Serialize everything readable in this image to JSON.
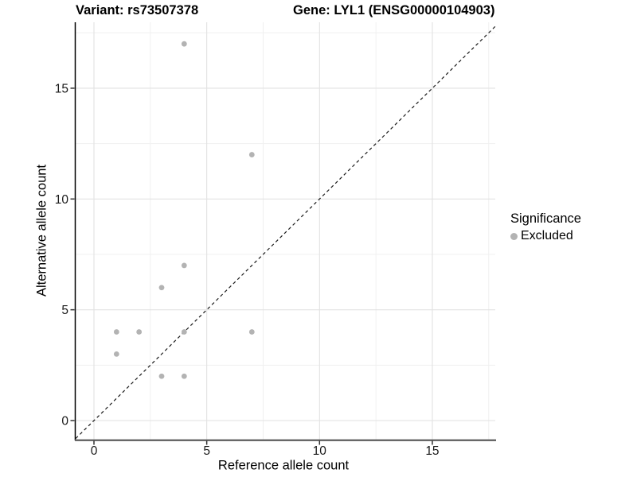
{
  "header": {
    "variant_title": "Variant: rs73507378",
    "gene_title": "Gene: LYL1 (ENSG00000104903)"
  },
  "chart_data": {
    "type": "scatter",
    "xlabel": "Reference allele count",
    "ylabel": "Alternative allele count",
    "xticks": [
      0,
      5,
      10,
      15
    ],
    "yticks": [
      0,
      5,
      10,
      15
    ],
    "minor_gridlines": [
      2.5,
      7.5,
      12.5,
      17.5
    ],
    "xlim": [
      -0.85,
      17.85
    ],
    "ylim": [
      -0.85,
      17.85
    ],
    "grid": {
      "major": true,
      "minor": true
    },
    "identity_line": {
      "style": "dashed",
      "slope": 1,
      "intercept": 0
    },
    "series": [
      {
        "name": "Excluded",
        "points": [
          [
            1,
            3
          ],
          [
            1,
            4
          ],
          [
            2,
            4
          ],
          [
            3,
            2
          ],
          [
            3,
            6
          ],
          [
            4,
            2
          ],
          [
            4,
            4
          ],
          [
            4,
            7
          ],
          [
            4,
            17
          ],
          [
            7,
            4
          ],
          [
            7,
            12
          ]
        ]
      }
    ],
    "legend": {
      "title": "Significance",
      "position": "right",
      "items": [
        {
          "label": "Excluded",
          "color": "#b3b3b3"
        }
      ]
    }
  },
  "colors": {
    "point": "#b3b3b3",
    "grid_major": "#e2e2e2",
    "grid_minor": "#f0f0f0",
    "axis_left": "#000000",
    "axis_bottom": "#5c5c5c",
    "tick_mark": "#333333",
    "tick_text": "#1a1a1a",
    "identity_line": "#1a1a1a",
    "background": "#ffffff"
  }
}
